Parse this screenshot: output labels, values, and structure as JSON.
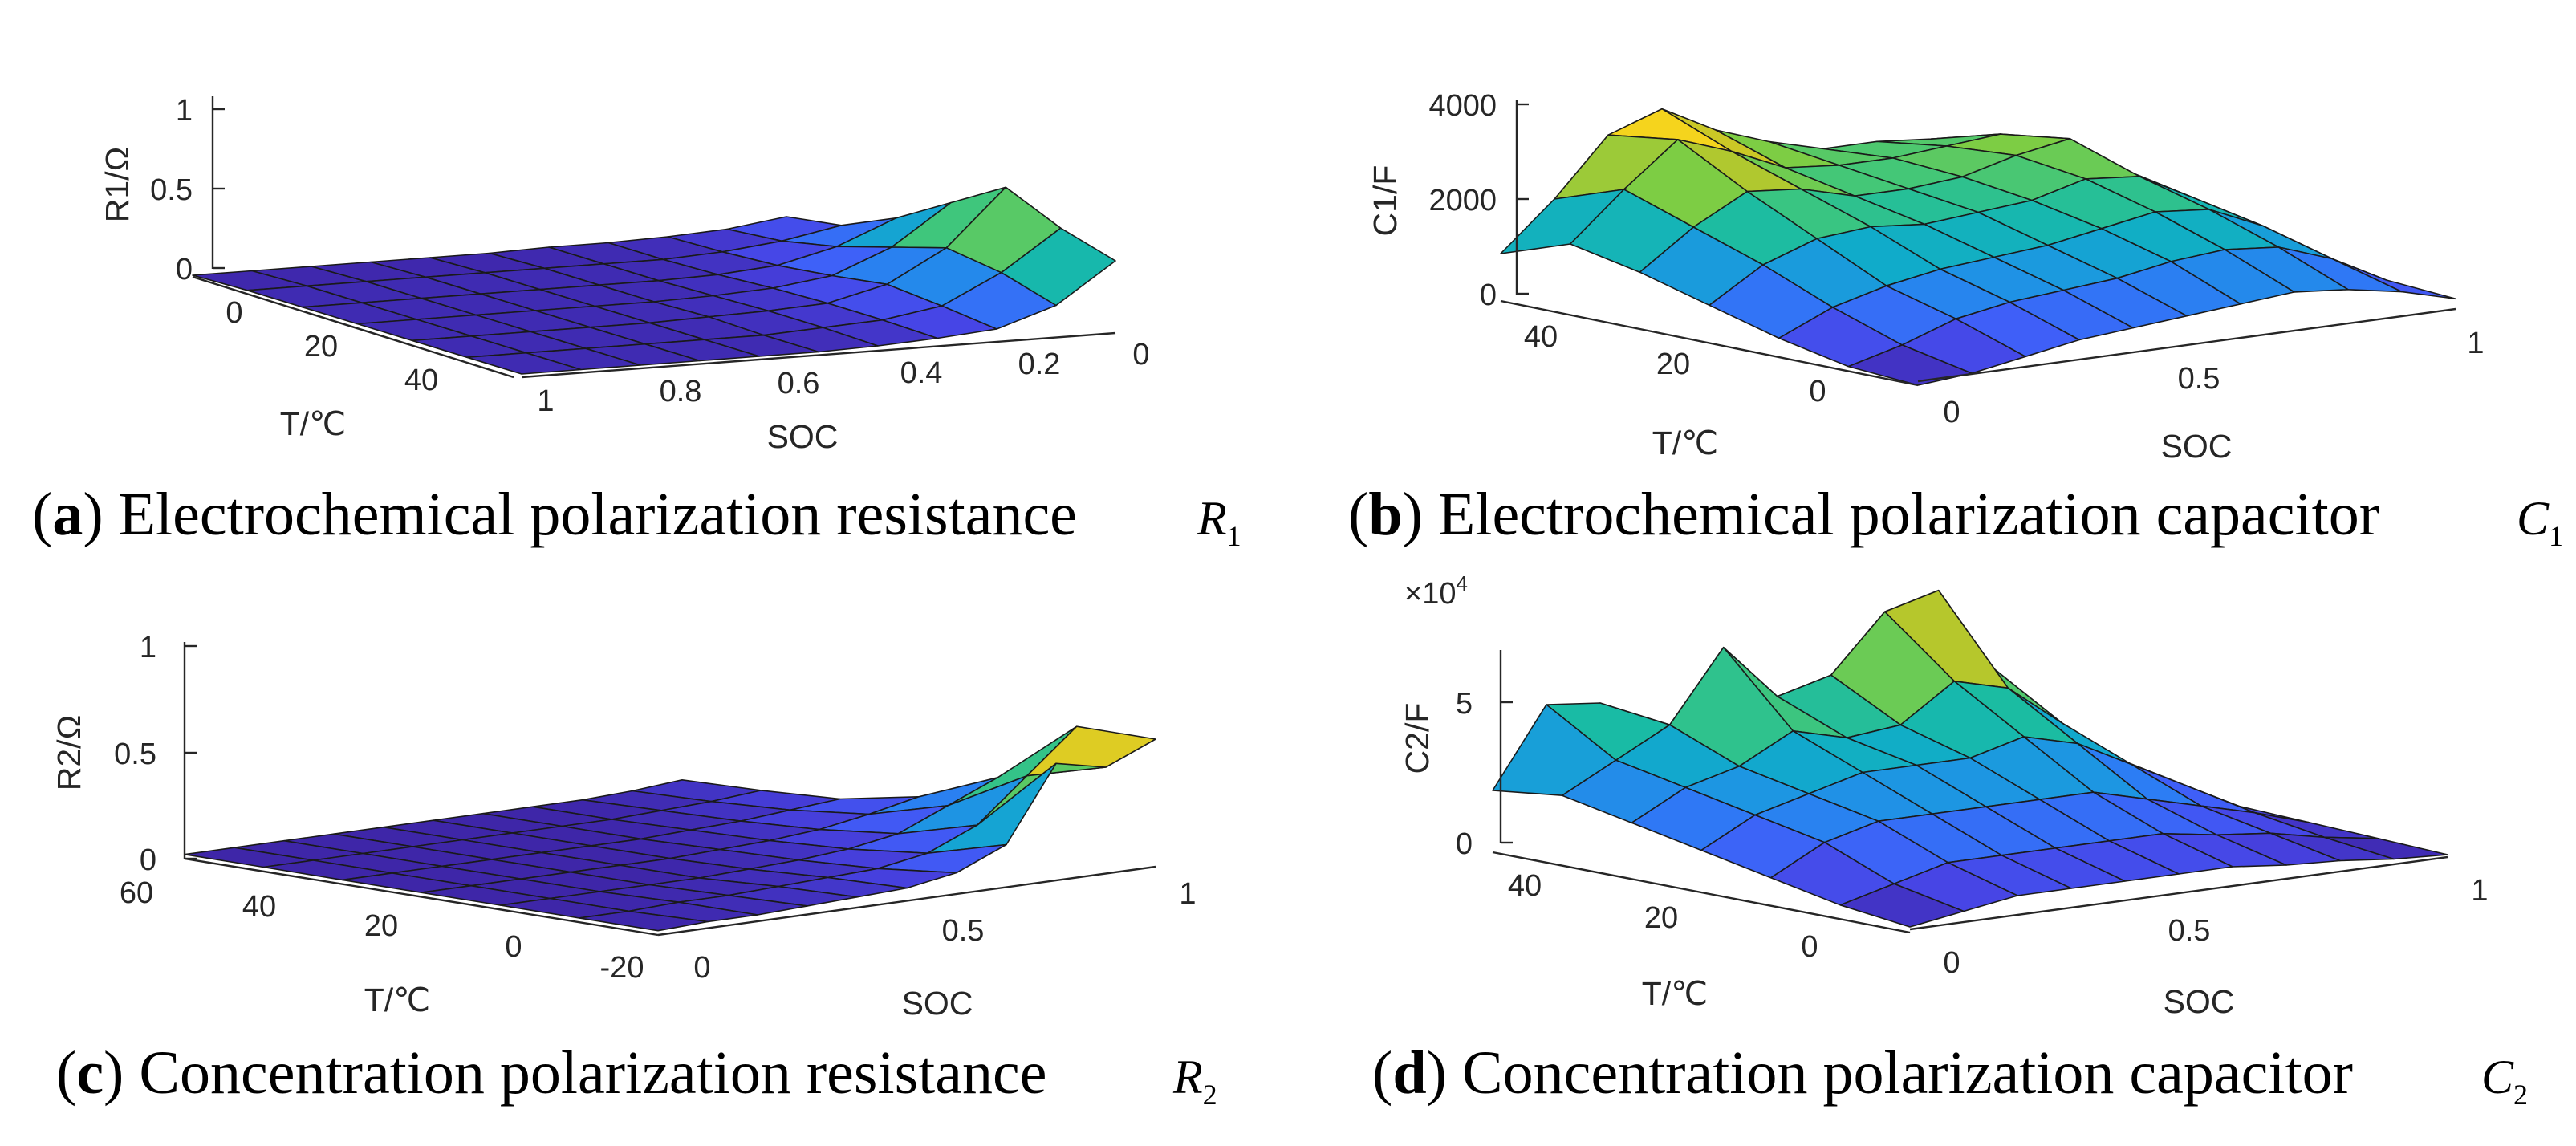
{
  "chart_data": [
    {
      "id": "a",
      "type": "surface",
      "caption": {
        "letter": "a",
        "text": "Electrochemical polarization resistance",
        "symbol": "R",
        "subscript": "1"
      },
      "zlabel": "R1/Ω",
      "xlabel": "SOC",
      "ylabel": "T/℃",
      "z_ticks": [
        "0",
        "0.5",
        "1"
      ],
      "soc_ticks": [
        "1",
        "0.8",
        "0.6",
        "0.4",
        "0.2",
        "0"
      ],
      "t_ticks": [
        "0",
        "20",
        "40"
      ],
      "soc": [
        1.0,
        0.9,
        0.8,
        0.7,
        0.6,
        0.5,
        0.4,
        0.3,
        0.2,
        0.1,
        0.0
      ],
      "temperature": [
        -10,
        0,
        10,
        20,
        30,
        40,
        50
      ],
      "z": [
        [
          0.02,
          0.02,
          0.02,
          0.02,
          0.02,
          0.02,
          0.03,
          0.05,
          0.08,
          0.2,
          0.45
        ],
        [
          0.02,
          0.02,
          0.02,
          0.02,
          0.02,
          0.02,
          0.04,
          0.06,
          0.12,
          0.3,
          0.55
        ],
        [
          0.02,
          0.02,
          0.02,
          0.02,
          0.02,
          0.03,
          0.04,
          0.06,
          0.15,
          0.35,
          0.7
        ],
        [
          0.02,
          0.02,
          0.02,
          0.02,
          0.02,
          0.02,
          0.03,
          0.05,
          0.1,
          0.25,
          0.5
        ],
        [
          0.02,
          0.02,
          0.02,
          0.02,
          0.02,
          0.02,
          0.02,
          0.03,
          0.06,
          0.15,
          0.3
        ],
        [
          0.02,
          0.02,
          0.02,
          0.02,
          0.02,
          0.02,
          0.02,
          0.02,
          0.04,
          0.08,
          0.15
        ],
        [
          0.01,
          0.01,
          0.01,
          0.01,
          0.01,
          0.01,
          0.02,
          0.02,
          0.03,
          0.05,
          0.1
        ]
      ]
    },
    {
      "id": "b",
      "type": "surface",
      "caption": {
        "letter": "b",
        "text": "Electrochemical polarization capacitor",
        "symbol": "C",
        "subscript": "1"
      },
      "zlabel": "C1/F",
      "xlabel": "SOC",
      "ylabel": "T/℃",
      "z_ticks": [
        "0",
        "2000",
        "4000"
      ],
      "soc_ticks": [
        "0",
        "0.5",
        "1"
      ],
      "t_ticks": [
        "40",
        "20",
        "0"
      ],
      "soc": [
        0.0,
        0.1,
        0.2,
        0.3,
        0.4,
        0.5,
        0.6,
        0.7,
        0.8,
        0.9,
        1.0
      ],
      "temperature": [
        50,
        40,
        30,
        20,
        10,
        0,
        -10
      ],
      "z": [
        [
          1000,
          2000,
          3200,
          3600,
          3000,
          2600,
          2300,
          2300,
          2200,
          1800,
          1000
        ],
        [
          1500,
          2500,
          3400,
          3000,
          2500,
          2400,
          2400,
          2500,
          2600,
          1900,
          1000
        ],
        [
          1200,
          2000,
          2600,
          2500,
          2200,
          2200,
          2300,
          2600,
          2800,
          2000,
          900
        ],
        [
          800,
          1500,
          1900,
          2000,
          1900,
          2000,
          2100,
          2400,
          2300,
          1700,
          800
        ],
        [
          400,
          900,
          1200,
          1400,
          1500,
          1600,
          1800,
          2000,
          1900,
          1400,
          600
        ],
        [
          100,
          400,
          800,
          1000,
          1100,
          1200,
          1400,
          1500,
          1400,
          1000,
          400
        ],
        [
          0,
          100,
          300,
          500,
          600,
          700,
          800,
          900,
          800,
          600,
          300
        ]
      ]
    },
    {
      "id": "c",
      "type": "surface",
      "caption": {
        "letter": "c",
        "text": "Concentration polarization resistance",
        "symbol": "R",
        "subscript": "2"
      },
      "zlabel": "R2/Ω",
      "xlabel": "SOC",
      "ylabel": "T/℃",
      "z_ticks": [
        "0",
        "0.5",
        "1"
      ],
      "soc_ticks": [
        "0",
        "0.5",
        "1"
      ],
      "t_ticks": [
        "60",
        "40",
        "20",
        "0",
        "-20"
      ],
      "soc": [
        0.0,
        0.1,
        0.2,
        0.3,
        0.4,
        0.5,
        0.6,
        0.7,
        0.8,
        0.9,
        1.0
      ],
      "temperature": [
        50,
        40,
        30,
        20,
        10,
        0,
        -10
      ],
      "z": [
        [
          0.02,
          0.02,
          0.02,
          0.02,
          0.02,
          0.02,
          0.02,
          0.02,
          0.02,
          0.03,
          0.05
        ],
        [
          0.02,
          0.02,
          0.02,
          0.02,
          0.02,
          0.02,
          0.02,
          0.02,
          0.03,
          0.04,
          0.06
        ],
        [
          0.02,
          0.02,
          0.02,
          0.02,
          0.02,
          0.02,
          0.02,
          0.03,
          0.04,
          0.06,
          0.08
        ],
        [
          0.02,
          0.02,
          0.02,
          0.02,
          0.02,
          0.02,
          0.03,
          0.04,
          0.06,
          0.1,
          0.15
        ],
        [
          0.02,
          0.02,
          0.02,
          0.02,
          0.02,
          0.03,
          0.04,
          0.06,
          0.1,
          0.2,
          0.3
        ],
        [
          0.02,
          0.02,
          0.03,
          0.03,
          0.04,
          0.05,
          0.06,
          0.1,
          0.2,
          0.4,
          0.6
        ],
        [
          0.02,
          0.03,
          0.03,
          0.04,
          0.05,
          0.06,
          0.1,
          0.2,
          0.55,
          0.5,
          0.6
        ]
      ]
    },
    {
      "id": "d",
      "type": "surface",
      "caption": {
        "letter": "d",
        "text": "Concentration polarization capacitor",
        "symbol": "C",
        "subscript": "2"
      },
      "zlabel": "C2/F",
      "xlabel": "SOC",
      "ylabel": "T/℃",
      "exponent": "×10",
      "exponent_power": "4",
      "z_ticks": [
        "0",
        "5"
      ],
      "soc_ticks": [
        "0",
        "0.5",
        "1"
      ],
      "t_ticks": [
        "40",
        "20",
        "0"
      ],
      "soc": [
        0.0,
        0.1,
        0.2,
        0.3,
        0.4,
        0.5,
        0.6,
        0.7,
        0.8,
        0.9,
        1.0
      ],
      "temperature": [
        50,
        40,
        30,
        20,
        10,
        0,
        -10
      ],
      "z": [
        [
          2.2,
          5.0,
          4.8,
          1.5,
          1.0,
          0.8,
          0.6,
          0.5,
          0.4,
          0.3,
          0.2
        ],
        [
          2.5,
          3.5,
          4.5,
          7.0,
          5.0,
          5.5,
          7.5,
          8.0,
          5.0,
          2.5,
          0.8
        ],
        [
          2.0,
          3.0,
          3.5,
          4.5,
          4.0,
          4.2,
          5.5,
          5.0,
          3.5,
          2.0,
          0.6
        ],
        [
          1.5,
          2.5,
          3.0,
          3.5,
          3.5,
          3.5,
          4.0,
          3.5,
          2.5,
          1.5,
          0.5
        ],
        [
          1.0,
          2.0,
          2.5,
          2.5,
          2.5,
          2.5,
          2.5,
          2.0,
          1.5,
          1.0,
          0.4
        ],
        [
          0.5,
          1.0,
          1.5,
          1.5,
          1.5,
          1.5,
          1.5,
          1.2,
          1.0,
          0.6,
          0.3
        ],
        [
          0.2,
          0.5,
          0.8,
          0.8,
          0.8,
          0.8,
          0.8,
          0.6,
          0.5,
          0.3,
          0.2
        ]
      ]
    }
  ],
  "colormap": [
    "#3e26a8",
    "#4743e4",
    "#3f5ff8",
    "#2d7bf5",
    "#1c97e1",
    "#10acc9",
    "#19bba5",
    "#3ec67d",
    "#7ccd45",
    "#bec629",
    "#f5d01e",
    "#f9fb15"
  ]
}
